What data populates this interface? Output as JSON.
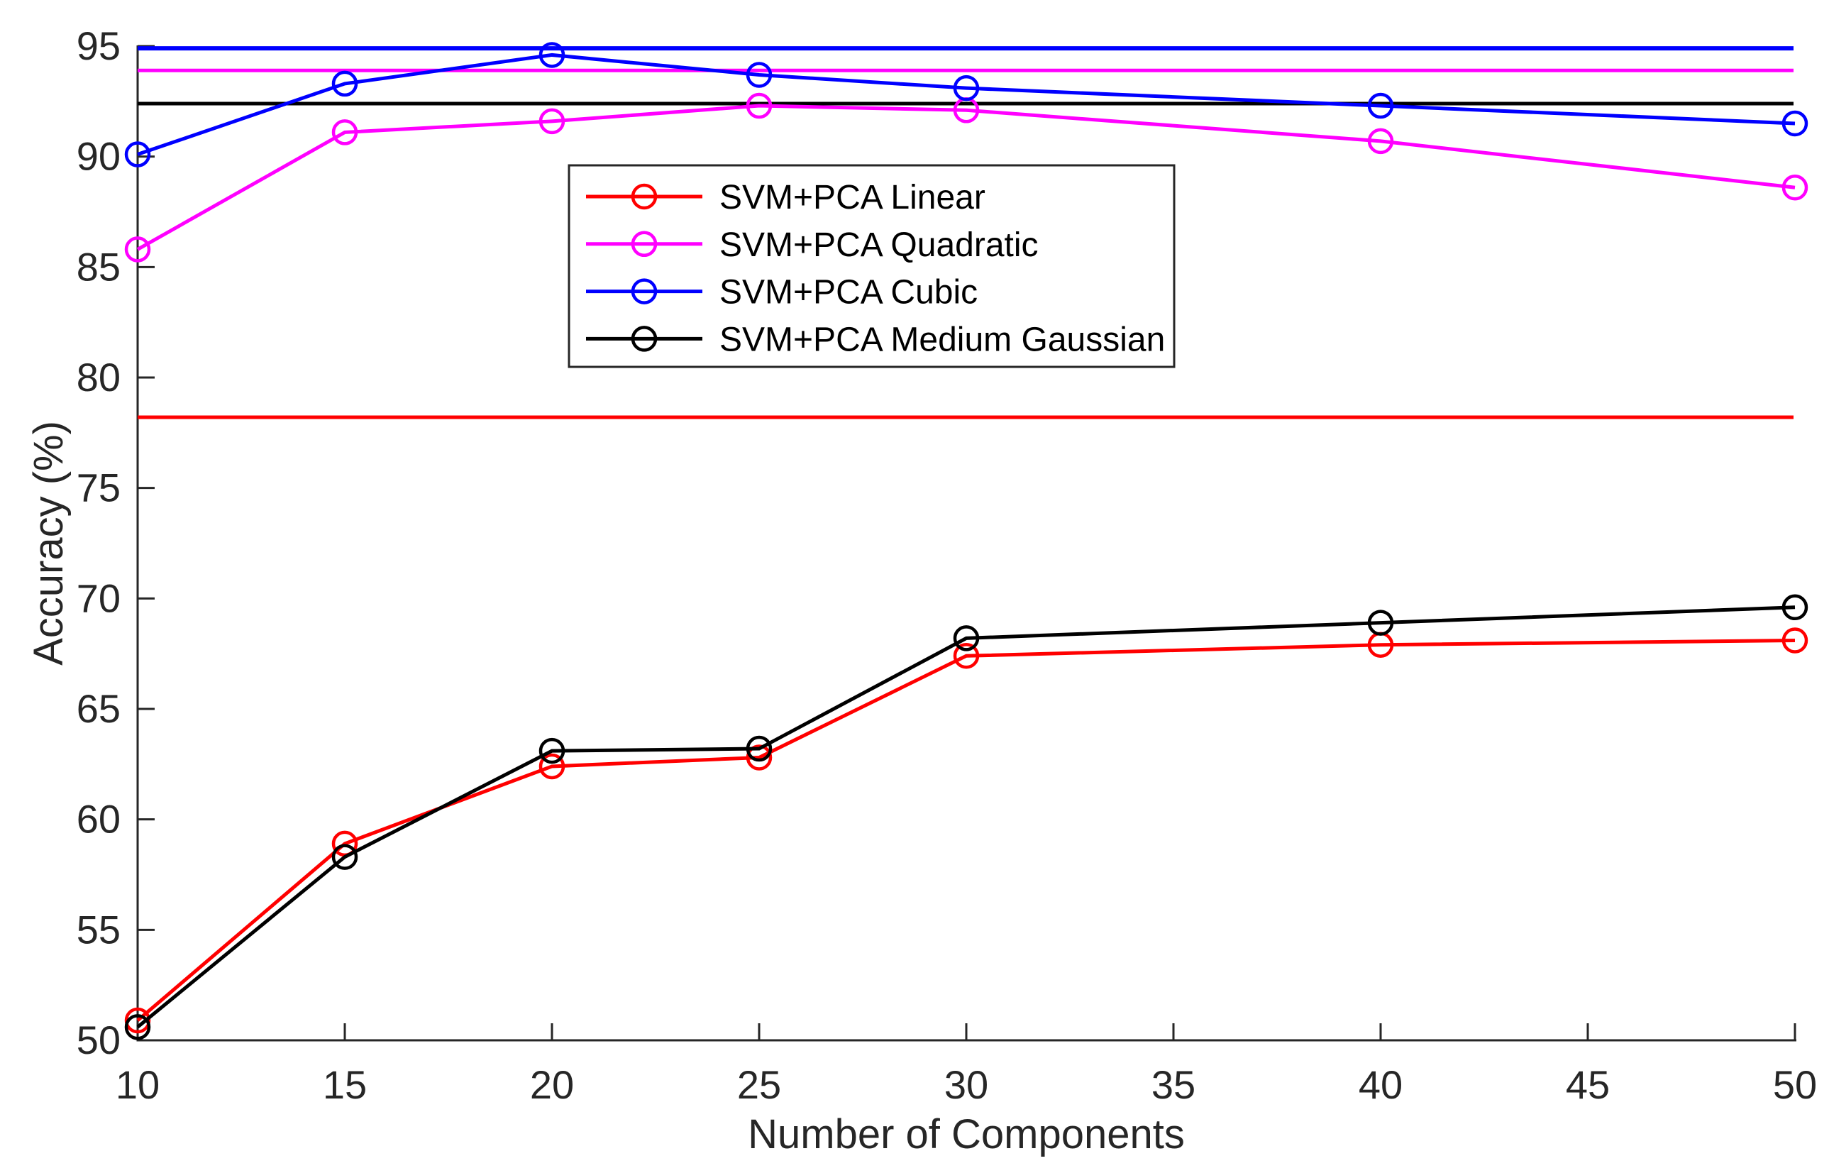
{
  "chart_data": {
    "type": "line",
    "title": "",
    "xlabel": "Number of Components",
    "ylabel": "Accuracy (%)",
    "x": [
      10,
      15,
      20,
      25,
      30,
      40,
      50
    ],
    "xlim": [
      10,
      50
    ],
    "ylim": [
      50,
      95
    ],
    "x_ticks": [
      10,
      15,
      20,
      25,
      30,
      35,
      40,
      45,
      50
    ],
    "y_ticks": [
      50,
      55,
      60,
      65,
      70,
      75,
      80,
      85,
      90,
      95
    ],
    "grid": false,
    "legend_position": "upper-center-inside",
    "axis_color": "#262626",
    "series": [
      {
        "name": "SVM+PCA Linear",
        "color": "#ff0000",
        "marker": "circle",
        "values": [
          50.9,
          58.9,
          62.4,
          62.8,
          67.4,
          67.9,
          68.1
        ]
      },
      {
        "name": "SVM+PCA Quadratic",
        "color": "#ff00ff",
        "marker": "circle",
        "values": [
          85.8,
          91.1,
          91.6,
          92.3,
          92.1,
          90.7,
          88.6
        ]
      },
      {
        "name": "SVM+PCA Cubic",
        "color": "#0000ff",
        "marker": "circle",
        "values": [
          90.1,
          93.3,
          94.6,
          93.7,
          93.1,
          92.3,
          91.5
        ]
      },
      {
        "name": "SVM+PCA Medium Gaussian",
        "color": "#000000",
        "marker": "circle",
        "values": [
          50.6,
          58.3,
          63.1,
          63.2,
          68.2,
          68.9,
          69.6
        ]
      }
    ],
    "reference_lines": [
      {
        "color": "#0000ff",
        "value": 94.9
      },
      {
        "color": "#ff00ff",
        "value": 93.9
      },
      {
        "color": "#000000",
        "value": 92.4
      },
      {
        "color": "#ff0000",
        "value": 78.2
      }
    ]
  }
}
